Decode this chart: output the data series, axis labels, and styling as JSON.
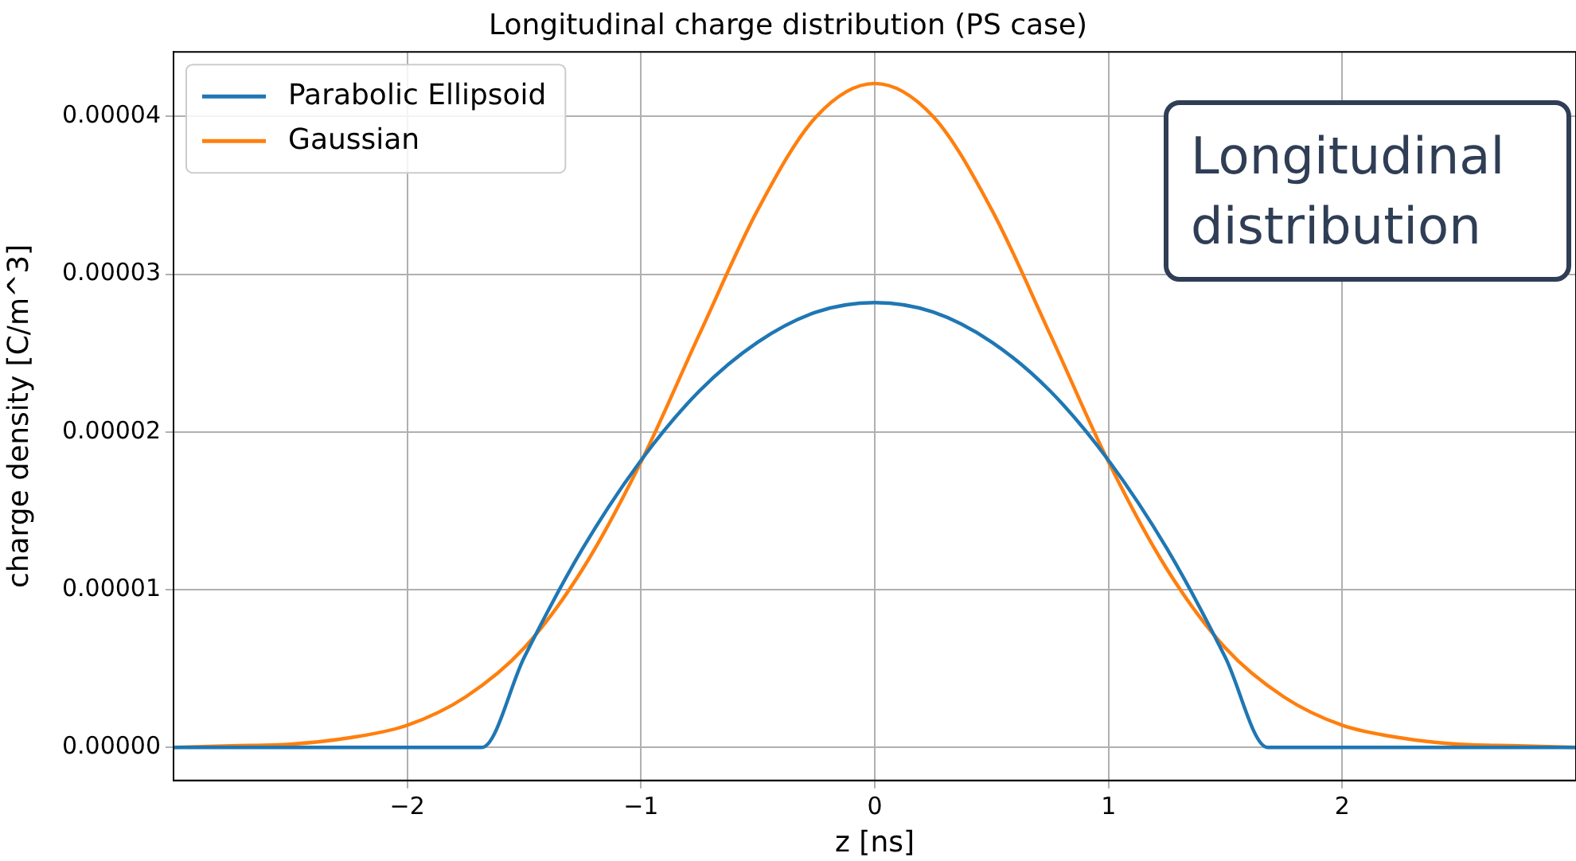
{
  "chart_data": {
    "type": "line",
    "title": "Longitudinal charge distribution (PS case)",
    "xlabel": "z [ns]",
    "ylabel": "charge density [C/m^3]",
    "xlim": [
      -3,
      3
    ],
    "ylim": [
      -2.1e-06,
      4.41e-05
    ],
    "xticks": [
      {
        "value": -2,
        "label": "−2"
      },
      {
        "value": -1,
        "label": "−1"
      },
      0,
      1,
      2
    ],
    "yticks": [
      {
        "value": 0,
        "label": "0.00000"
      },
      {
        "value": 1e-05,
        "label": "0.00001"
      },
      {
        "value": 2e-05,
        "label": "0.00002"
      },
      {
        "value": 3e-05,
        "label": "0.00003"
      },
      {
        "value": 4e-05,
        "label": "0.00004"
      }
    ],
    "grid": true,
    "legend": "top left",
    "marker": "none",
    "line_style": "solid",
    "annotations": [
      "Longitudinal distribution"
    ],
    "series": [
      {
        "name": "Parabolic Ellipsoid",
        "color": "#1f77b4",
        "x": [
          -3,
          -2,
          -1.68,
          -1.5,
          -1.25,
          -1,
          -0.75,
          -0.5,
          -0.25,
          0,
          0.25,
          0.5,
          0.75,
          1,
          1.25,
          1.5,
          1.68,
          2,
          3
        ],
        "values": [
          0,
          0,
          0,
          5.7e-06,
          1.26e-05,
          1.82e-05,
          2.26e-05,
          2.57e-05,
          2.76e-05,
          2.82e-05,
          2.76e-05,
          2.57e-05,
          2.26e-05,
          1.82e-05,
          1.26e-05,
          5.7e-06,
          0,
          0,
          0
        ]
      },
      {
        "name": "Gaussian",
        "color": "#ff7f0e",
        "x": [
          -3,
          -2.75,
          -2.5,
          -2.25,
          -2,
          -1.75,
          -1.5,
          -1.25,
          -1,
          -0.75,
          -0.5,
          -0.25,
          0,
          0.25,
          0.5,
          0.75,
          1,
          1.25,
          1.5,
          1.75,
          2,
          2.25,
          2.5,
          2.75,
          3
        ],
        "values": [
          0,
          1e-07,
          2e-07,
          6e-07,
          1.4e-06,
          3.2e-06,
          6.3e-06,
          1.13e-05,
          1.81e-05,
          2.62e-05,
          3.41e-05,
          4e-05,
          4.21e-05,
          4e-05,
          3.41e-05,
          2.62e-05,
          1.81e-05,
          1.13e-05,
          6.3e-06,
          3.2e-06,
          1.4e-06,
          6e-07,
          2e-07,
          1e-07,
          0
        ]
      }
    ]
  }
}
